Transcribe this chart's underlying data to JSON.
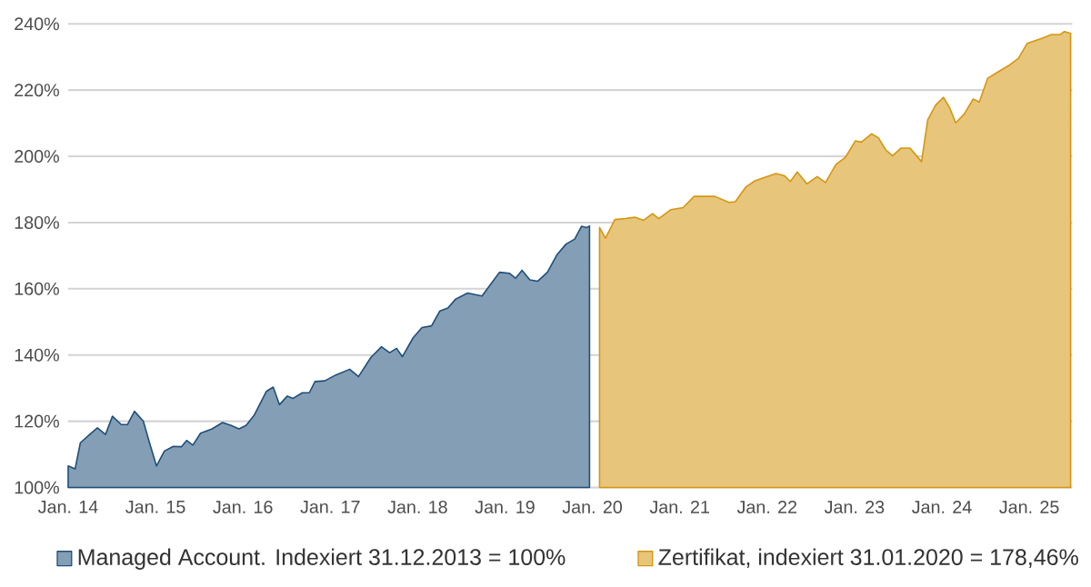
{
  "chart_data": {
    "type": "area",
    "series": [
      {
        "name": "Managed Account. Indexiert 31.12.2013 = 100%",
        "color": "#1f4e79",
        "x": [
          "2014-01-01",
          "2014-01-30",
          "2014-02-21",
          "2014-04-01",
          "2014-05-03",
          "2014-06-06",
          "2014-07-05",
          "2014-08-11",
          "2014-09-06",
          "2014-10-05",
          "2014-11-11",
          "2014-12-06",
          "2015-01-05",
          "2015-02-07",
          "2015-03-16",
          "2015-04-19",
          "2015-05-11",
          "2015-06-06",
          "2015-07-08",
          "2015-08-25",
          "2015-10-08",
          "2015-11-11",
          "2015-12-16",
          "2016-01-15",
          "2016-02-17",
          "2016-04-08",
          "2016-05-07",
          "2016-06-02",
          "2016-07-05",
          "2016-07-29",
          "2016-09-06",
          "2016-10-05",
          "2016-10-29",
          "2016-12-09",
          "2017-01-22",
          "2017-03-23",
          "2017-04-29",
          "2017-06-20",
          "2017-08-03",
          "2017-09-06",
          "2017-10-05",
          "2017-10-29",
          "2017-12-13",
          "2018-01-19",
          "2018-02-28",
          "2018-04-04",
          "2018-05-07",
          "2018-06-09",
          "2018-07-29",
          "2018-09-27",
          "2018-10-29",
          "2018-12-09",
          "2019-01-19",
          "2019-02-14",
          "2019-03-13",
          "2019-04-15",
          "2019-05-18",
          "2019-06-27",
          "2019-08-07",
          "2019-09-13",
          "2019-10-19",
          "2019-11-17",
          "2019-12-09",
          "2019-12-20"
        ],
        "values": [
          106.5,
          105.6,
          113.5,
          116,
          118,
          116,
          121.5,
          119,
          119,
          123,
          120,
          113.7,
          106.5,
          111,
          112.4,
          112.3,
          114.2,
          112.8,
          116.4,
          117.7,
          119.6,
          118.8,
          117.7,
          118.8,
          121.8,
          129,
          130.3,
          125,
          127.6,
          126.9,
          128.6,
          128.6,
          132,
          132.2,
          133.9,
          135.7,
          133.5,
          139.3,
          142.5,
          140.7,
          142,
          139.5,
          145.2,
          148.3,
          148.8,
          153.3,
          154.2,
          156.9,
          158.7,
          157.8,
          161,
          165,
          164.7,
          163.2,
          165.6,
          162.7,
          162.3,
          165,
          170.4,
          173.5,
          175,
          178.9,
          178.5,
          179
        ]
      },
      {
        "name": "Zertifikat, indexiert 31.01.2020 = 178,46%",
        "color": "#d4960f",
        "x": [
          "2020-01-31",
          "2020-02-25",
          "2020-04-04",
          "2020-05-18",
          "2020-06-27",
          "2020-08-03",
          "2020-09-09",
          "2020-10-05",
          "2020-11-25",
          "2021-01-15",
          "2021-03-02",
          "2021-05-28",
          "2021-07-26",
          "2021-08-21",
          "2021-10-05",
          "2021-11-11",
          "2021-12-16",
          "2022-02-07",
          "2022-03-13",
          "2022-04-08",
          "2022-05-07",
          "2022-06-16",
          "2022-07-29",
          "2022-09-02",
          "2022-10-15",
          "2022-11-25",
          "2023-01-05",
          "2023-01-30",
          "2023-03-13",
          "2023-04-11",
          "2023-05-11",
          "2023-06-09",
          "2023-07-15",
          "2023-08-21",
          "2023-10-08",
          "2023-11-03",
          "2023-12-06",
          "2024-01-08",
          "2024-02-03",
          "2024-02-28",
          "2024-04-04",
          "2024-05-11",
          "2024-06-06",
          "2024-07-11",
          "2024-08-21",
          "2024-10-11",
          "2024-11-17",
          "2024-12-23",
          "2025-02-25",
          "2025-04-04",
          "2025-05-11",
          "2025-05-28",
          "2025-06-23"
        ],
        "values": [
          178.5,
          175.3,
          180.9,
          181.2,
          181.6,
          180.7,
          182.7,
          181.2,
          183.9,
          184.5,
          187.9,
          187.9,
          186.1,
          186.3,
          190.8,
          192.6,
          193.5,
          194.8,
          194.2,
          192.4,
          195.3,
          191.7,
          193.9,
          192.1,
          197.5,
          199.8,
          204.7,
          204.3,
          206.8,
          205.6,
          202,
          200.2,
          202.5,
          202.5,
          198.4,
          211,
          215.5,
          217.8,
          214.6,
          210.1,
          212.8,
          217.3,
          216.4,
          223.6,
          225.4,
          227.6,
          229.6,
          234.1,
          235.7,
          236.8,
          236.8,
          237.7,
          237.1
        ]
      }
    ],
    "xlim": [
      "2014-01-01",
      "2025-06-30"
    ],
    "xticks": [
      {
        "value": "2014-01-01",
        "label": "Jan. 14"
      },
      {
        "value": "2015-01-01",
        "label": "Jan. 15"
      },
      {
        "value": "2016-01-01",
        "label": "Jan. 16"
      },
      {
        "value": "2017-01-01",
        "label": "Jan. 17"
      },
      {
        "value": "2018-01-01",
        "label": "Jan. 18"
      },
      {
        "value": "2019-01-01",
        "label": "Jan. 19"
      },
      {
        "value": "2020-01-01",
        "label": "Jan. 20"
      },
      {
        "value": "2021-01-01",
        "label": "Jan. 21"
      },
      {
        "value": "2022-01-01",
        "label": "Jan. 22"
      },
      {
        "value": "2023-01-01",
        "label": "Jan. 23"
      },
      {
        "value": "2024-01-01",
        "label": "Jan. 24"
      },
      {
        "value": "2025-01-01",
        "label": "Jan. 25"
      }
    ],
    "ylim": [
      100,
      240
    ],
    "yticks": [
      {
        "value": 100,
        "label": "100%"
      },
      {
        "value": 120,
        "label": "120%"
      },
      {
        "value": 140,
        "label": "140%"
      },
      {
        "value": 160,
        "label": "160%"
      },
      {
        "value": 180,
        "label": "180%"
      },
      {
        "value": 200,
        "label": "200%"
      },
      {
        "value": 220,
        "label": "220%"
      },
      {
        "value": 240,
        "label": "240%"
      }
    ],
    "grid": "y",
    "legend": "bottom"
  }
}
